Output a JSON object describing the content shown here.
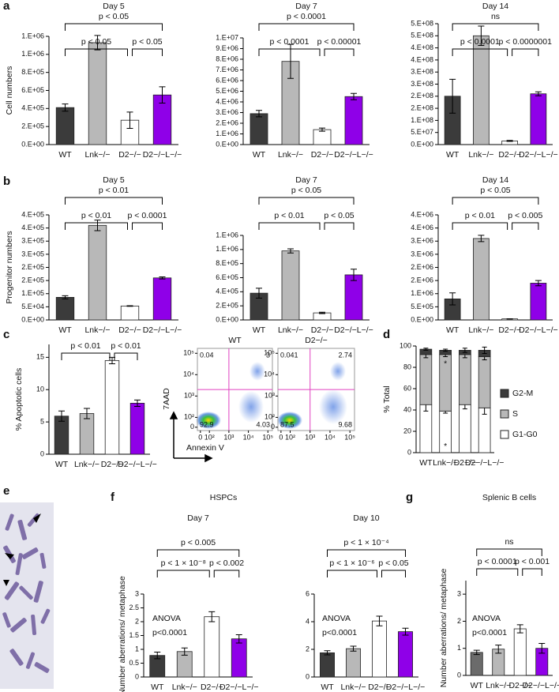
{
  "panel_labels": {
    "a": "a",
    "b": "b",
    "c": "c",
    "d": "d",
    "e": "e",
    "f": "f",
    "g": "g"
  },
  "chart_data": [
    {
      "type": "bar",
      "panel": "a",
      "title": "Day 5",
      "ylabel": "Cell numbers",
      "categories": [
        "WT",
        "Lnk−/−",
        "D2−/−",
        "D2−/−L−/−"
      ],
      "colors": [
        "#3b3b3b",
        "#b8b8b8",
        "#ffffff",
        "#8f00e8"
      ],
      "values": [
        410000,
        1130000,
        270000,
        550000
      ],
      "errors": [
        40000,
        80000,
        90000,
        90000
      ],
      "ylim": [
        0,
        1200000
      ],
      "yticks": [
        {
          "value": 0,
          "label": "0.E+00"
        },
        {
          "value": 200000,
          "label": "2.E+05"
        },
        {
          "value": 400000,
          "label": "4.E+05"
        },
        {
          "value": 600000,
          "label": "6.E+05"
        },
        {
          "value": 800000,
          "label": "8.E+05"
        },
        {
          "value": 1000000,
          "label": "1.E+06"
        },
        {
          "value": 1200000,
          "label": "1.E+06"
        }
      ],
      "comparisons": [
        {
          "label": "p < 0.05",
          "groups": [
            0,
            3
          ]
        },
        {
          "label": "p < 0.05",
          "groups": [
            0,
            2
          ]
        },
        {
          "label": "p < 0.05",
          "groups": [
            2,
            3
          ]
        }
      ]
    },
    {
      "type": "bar",
      "title": "Day 7",
      "categories": [
        "WT",
        "Lnk−/−",
        "D2−/−",
        "D2−/−L−/−"
      ],
      "colors": [
        "#3b3b3b",
        "#b8b8b8",
        "#ffffff",
        "#8f00e8"
      ],
      "values": [
        2900000,
        7800000,
        1400000,
        4500000
      ],
      "errors": [
        300000,
        1600000,
        150000,
        300000
      ],
      "ylim": [
        0,
        10000000
      ],
      "yticks": [
        {
          "value": 0,
          "label": "0.E+00"
        },
        {
          "value": 1000000,
          "label": "1.E+06"
        },
        {
          "value": 2000000,
          "label": "2.E+06"
        },
        {
          "value": 3000000,
          "label": "3.E+06"
        },
        {
          "value": 4000000,
          "label": "4.E+06"
        },
        {
          "value": 5000000,
          "label": "5.E+06"
        },
        {
          "value": 6000000,
          "label": "6.E+06"
        },
        {
          "value": 7000000,
          "label": "7.E+06"
        },
        {
          "value": 8000000,
          "label": "8.E+06"
        },
        {
          "value": 9000000,
          "label": "9.E+06"
        },
        {
          "value": 10000000,
          "label": "1.E+07"
        }
      ],
      "comparisons": [
        {
          "label": "p < 0.0001",
          "groups": [
            0,
            3
          ]
        },
        {
          "label": "p < 0.0001",
          "groups": [
            0,
            2
          ]
        },
        {
          "label": "p < 0.00001",
          "groups": [
            2,
            3
          ]
        }
      ]
    },
    {
      "type": "bar",
      "title": "Day 14",
      "categories": [
        "WT",
        "Lnk−/−",
        "D2−/−",
        "D2−/−L−/−"
      ],
      "colors": [
        "#3b3b3b",
        "#b8b8b8",
        "#ffffff",
        "#8f00e8"
      ],
      "values": [
        200000000,
        450000000,
        15000000,
        210000000
      ],
      "errors": [
        70000000,
        40000000,
        2000000,
        8000000
      ],
      "ylim": [
        0,
        500000000
      ],
      "yticks": [
        {
          "value": 0,
          "label": "0.E+00"
        },
        {
          "value": 50000000,
          "label": "5.E+07"
        },
        {
          "value": 100000000,
          "label": "1.E+08"
        },
        {
          "value": 150000000,
          "label": "2.E+08"
        },
        {
          "value": 200000000,
          "label": "2.E+08"
        },
        {
          "value": 250000000,
          "label": "3.E+08"
        },
        {
          "value": 300000000,
          "label": "3.E+08"
        },
        {
          "value": 350000000,
          "label": "4.E+08"
        },
        {
          "value": 400000000,
          "label": "4.E+08"
        },
        {
          "value": 450000000,
          "label": "5.E+08"
        },
        {
          "value": 500000000,
          "label": "5.E+08"
        }
      ],
      "comparisons": [
        {
          "label": "ns",
          "groups": [
            0,
            3
          ]
        },
        {
          "label": "p < 0.0001",
          "groups": [
            0,
            2
          ]
        },
        {
          "label": "p < 0.0000001",
          "groups": [
            2,
            3
          ]
        }
      ]
    },
    {
      "type": "bar",
      "panel": "b",
      "title": "Day 5",
      "ylabel": "Progenitor numbers",
      "categories": [
        "WT",
        "Lnk−/−",
        "D2−/−",
        "D2−/−L−/−"
      ],
      "colors": [
        "#3b3b3b",
        "#b8b8b8",
        "#ffffff",
        "#8f00e8"
      ],
      "values": [
        86000,
        360000,
        53000,
        160000
      ],
      "errors": [
        6000,
        20000,
        1000,
        4000
      ],
      "ylim": [
        0,
        400000
      ],
      "yticks": [
        {
          "value": 0,
          "label": "0.E+00"
        },
        {
          "value": 50000,
          "label": "5.E+04"
        },
        {
          "value": 100000,
          "label": "1.E+05"
        },
        {
          "value": 150000,
          "label": "2.E+05"
        },
        {
          "value": 200000,
          "label": "2.E+05"
        },
        {
          "value": 250000,
          "label": "3.E+05"
        },
        {
          "value": 300000,
          "label": "3.E+05"
        },
        {
          "value": 350000,
          "label": "4.E+05"
        },
        {
          "value": 400000,
          "label": "4.E+05"
        }
      ],
      "comparisons": [
        {
          "label": "p < 0.01",
          "groups": [
            0,
            3
          ]
        },
        {
          "label": "p < 0.01",
          "groups": [
            0,
            2
          ]
        },
        {
          "label": "p < 0.0001",
          "groups": [
            2,
            3
          ]
        }
      ]
    },
    {
      "type": "bar",
      "title": "Day 7",
      "categories": [
        "WT",
        "Lnk−/−",
        "D2−/−",
        "D2−/−L−/−"
      ],
      "colors": [
        "#3b3b3b",
        "#b8b8b8",
        "#ffffff",
        "#8f00e8"
      ],
      "values": [
        380000,
        980000,
        100000,
        640000
      ],
      "errors": [
        70000,
        30000,
        10000,
        80000
      ],
      "ylim": [
        0,
        1200000
      ],
      "yticks": [
        {
          "value": 0,
          "label": "0.E+00"
        },
        {
          "value": 200000,
          "label": "2.E+05"
        },
        {
          "value": 400000,
          "label": "4.E+05"
        },
        {
          "value": 600000,
          "label": "6.E+05"
        },
        {
          "value": 800000,
          "label": "8.E+05"
        },
        {
          "value": 1000000,
          "label": "1.E+06"
        },
        {
          "value": 1200000,
          "label": "1.E+06"
        }
      ],
      "comparisons": [
        {
          "label": "p < 0.05",
          "groups": [
            0,
            3
          ]
        },
        {
          "label": "p < 0.01",
          "groups": [
            0,
            2
          ]
        },
        {
          "label": "p < 0.05",
          "groups": [
            2,
            3
          ]
        }
      ]
    },
    {
      "type": "bar",
      "title": "Day 14",
      "categories": [
        "WT",
        "Lnk−/−",
        "D2−/−",
        "D2−/−L−/−"
      ],
      "colors": [
        "#3b3b3b",
        "#b8b8b8",
        "#ffffff",
        "#8f00e8"
      ],
      "values": [
        800000,
        3100000,
        40000,
        1400000
      ],
      "errors": [
        230000,
        120000,
        5000,
        100000
      ],
      "ylim": [
        0,
        4000000
      ],
      "yticks": [
        {
          "value": 0,
          "label": "0.E+00"
        },
        {
          "value": 500000,
          "label": "5.E+05"
        },
        {
          "value": 1000000,
          "label": "1.E+06"
        },
        {
          "value": 1500000,
          "label": "2.E+06"
        },
        {
          "value": 2000000,
          "label": "2.E+06"
        },
        {
          "value": 2500000,
          "label": "3.E+06"
        },
        {
          "value": 3000000,
          "label": "3.E+06"
        },
        {
          "value": 3500000,
          "label": "4.E+06"
        },
        {
          "value": 4000000,
          "label": "4.E+06"
        }
      ],
      "comparisons": [
        {
          "label": "p < 0.05",
          "groups": [
            0,
            3
          ]
        },
        {
          "label": "p < 0.01",
          "groups": [
            0,
            2
          ]
        },
        {
          "label": "p < 0.005",
          "groups": [
            2,
            3
          ]
        }
      ]
    },
    {
      "type": "bar",
      "panel": "c",
      "ylabel": "% Apoptotic cells",
      "categories": [
        "WT",
        "Lnk−/−",
        "D2−/−",
        "D2−/−L−/−"
      ],
      "colors": [
        "#3b3b3b",
        "#b8b8b8",
        "#ffffff",
        "#8f00e8"
      ],
      "values": [
        5.9,
        6.3,
        14.5,
        7.9
      ],
      "errors": [
        0.8,
        0.8,
        0.5,
        0.5
      ],
      "ylim": [
        0,
        17
      ],
      "yticks": [
        0,
        5,
        10,
        15
      ],
      "comparisons": [
        {
          "label": "p < 0.01",
          "groups": [
            0,
            2
          ]
        },
        {
          "label": "p < 0.01",
          "groups": [
            2,
            3
          ]
        }
      ]
    },
    {
      "type": "flow",
      "xlabel": "Annexin V",
      "ylabel": "7AAD",
      "plots": [
        {
          "title": "WT",
          "quadrants": [
            0.04,
            3,
            92.9,
            4.03
          ]
        },
        {
          "title": "D2−/−",
          "quadrants": [
            0.041,
            2.74,
            87.5,
            9.68
          ]
        }
      ],
      "xticks": [
        0,
        {
          "value": 100,
          "label": "10²"
        },
        {
          "value": 1000,
          "label": "10³"
        },
        {
          "value": 10000,
          "label": "10⁴"
        },
        {
          "value": 100000,
          "label": "10⁵"
        }
      ],
      "yticks": [
        0,
        {
          "value": 100,
          "label": "10²"
        },
        {
          "value": 1000,
          "label": "10³"
        },
        {
          "value": 10000,
          "label": "10⁴"
        },
        {
          "value": 100000,
          "label": "10⁵"
        }
      ],
      "gate": [
        1000,
        2000
      ]
    },
    {
      "type": "stacked_bar",
      "panel": "d",
      "ylabel": "% Total",
      "categories": [
        "WT",
        "Lnk−/−",
        "D2−/−",
        "D2−/−L−/−"
      ],
      "series": [
        {
          "name": "G1-G0",
          "color": "#ffffff",
          "values": [
            45,
            39,
            45,
            42
          ],
          "errors": [
            6,
            2,
            4,
            6
          ]
        },
        {
          "name": "S",
          "color": "#b8b8b8",
          "values": [
            47,
            53,
            47,
            48
          ],
          "errors": [
            3,
            2,
            3,
            3
          ]
        },
        {
          "name": "G2-M",
          "color": "#3b3b3b",
          "values": [
            5,
            4,
            4,
            6
          ],
          "errors": [
            1,
            1,
            2,
            3
          ]
        }
      ],
      "markers": [
        {
          "text": "*",
          "series": 1,
          "category": 1
        },
        {
          "text": "*",
          "series": 0,
          "category": 1
        }
      ],
      "ylim": [
        0,
        100
      ],
      "yticks": [
        0,
        20,
        40,
        60,
        80,
        100
      ]
    },
    {
      "type": "bar",
      "panel": "f",
      "group_title": "HSPCs",
      "title": "Day 7",
      "ylabel": "Number aberrations/ metaphase",
      "categories": [
        "WT",
        "Lnk−/−",
        "D2−/−",
        "D2−/−L−/−"
      ],
      "colors": [
        "#3b3b3b",
        "#b8b8b8",
        "#ffffff",
        "#8f00e8"
      ],
      "values": [
        0.78,
        0.92,
        2.18,
        1.38
      ],
      "errors": [
        0.12,
        0.13,
        0.18,
        0.15
      ],
      "ylim": [
        0,
        3
      ],
      "yticks": [
        0,
        0.5,
        1,
        1.5,
        2,
        2.5,
        3
      ],
      "annotations": [
        "ANOVA",
        "p<0.0001"
      ],
      "comparisons": [
        {
          "label": "p < 0.005",
          "groups": [
            0,
            3
          ]
        },
        {
          "label": "p < 1 × 10⁻⁸",
          "groups": [
            0,
            2
          ]
        },
        {
          "label": "p < 0.002",
          "groups": [
            2,
            3
          ]
        }
      ]
    },
    {
      "type": "bar",
      "title": "Day 10",
      "categories": [
        "WT",
        "Lnk−/−",
        "D2−/−",
        "D2−/−L−/−"
      ],
      "colors": [
        "#3b3b3b",
        "#b8b8b8",
        "#ffffff",
        "#8f00e8"
      ],
      "values": [
        1.75,
        2.05,
        4.05,
        3.28
      ],
      "errors": [
        0.15,
        0.18,
        0.35,
        0.25
      ],
      "ylim": [
        0,
        6
      ],
      "yticks": [
        0,
        2,
        4,
        6
      ],
      "annotations": [
        "ANOVA",
        "p<0.0001"
      ],
      "comparisons": [
        {
          "label": "p < 1 × 10⁻⁴",
          "groups": [
            0,
            3
          ]
        },
        {
          "label": "p < 1 × 10⁻⁶",
          "groups": [
            0,
            2
          ]
        },
        {
          "label": "p < 0.05",
          "groups": [
            2,
            3
          ]
        }
      ]
    },
    {
      "type": "bar",
      "panel": "g",
      "title": "Splenic B cells",
      "ylabel": "Number aberrations/ metaphase",
      "categories": [
        "WT",
        "Lnk−/−",
        "D2−/−",
        "D2−/−L−/−"
      ],
      "colors": [
        "#6b6b6b",
        "#b8b8b8",
        "#ffffff",
        "#8f00e8"
      ],
      "values": [
        0.85,
        0.97,
        1.72,
        1.0
      ],
      "errors": [
        0.08,
        0.15,
        0.15,
        0.18
      ],
      "ylim": [
        0,
        3.5
      ],
      "yticks": [
        0,
        1,
        2,
        3
      ],
      "annotations": [
        "ANOVA",
        "p<0.0001"
      ],
      "comparisons": [
        {
          "label": "ns",
          "groups": [
            0,
            3
          ]
        },
        {
          "label": "p < 0.0001",
          "groups": [
            0,
            2
          ]
        },
        {
          "label": "p < 0.001",
          "groups": [
            2,
            3
          ]
        }
      ]
    }
  ]
}
